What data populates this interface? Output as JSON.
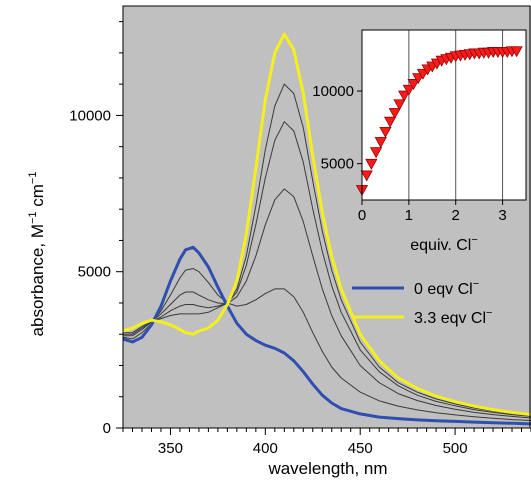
{
  "chart_data": [
    {
      "type": "line",
      "xlabel": "wavelength, nm",
      "ylabel_main": "absorbance, M",
      "ylabel_sup1": "−1",
      "ylabel_mid": " cm",
      "ylabel_sup2": "−1",
      "xlim": [
        325,
        540
      ],
      "ylim": [
        0,
        13500
      ],
      "xticks": [
        350,
        400,
        450,
        500
      ],
      "yticks": [
        0,
        5000,
        10000
      ],
      "background": "#c0c0c0",
      "grid": false,
      "legend_position": "center-right",
      "series": [
        {
          "name": "0 eqv Cl",
          "name_sup": "−",
          "color": "#2e4fb0",
          "width": 3,
          "x": [
            325,
            330,
            335,
            340,
            345,
            350,
            355,
            358,
            362,
            365,
            370,
            375,
            380,
            385,
            390,
            395,
            400,
            405,
            410,
            415,
            420,
            425,
            430,
            435,
            440,
            450,
            460,
            470,
            480,
            490,
            500,
            510,
            520,
            530,
            540
          ],
          "y": [
            2850,
            2750,
            2900,
            3300,
            3900,
            4700,
            5400,
            5700,
            5780,
            5600,
            5150,
            4500,
            3900,
            3350,
            3000,
            2800,
            2650,
            2550,
            2400,
            2150,
            1800,
            1400,
            1050,
            800,
            620,
            450,
            350,
            300,
            260,
            230,
            210,
            190,
            170,
            150,
            130
          ]
        },
        {
          "name": "",
          "color": "#3a3a3a",
          "width": 1,
          "x": [
            325,
            330,
            335,
            340,
            345,
            350,
            355,
            358,
            362,
            365,
            370,
            375,
            380,
            385,
            390,
            395,
            400,
            405,
            410,
            415,
            420,
            425,
            430,
            435,
            440,
            450,
            460,
            470,
            480,
            490,
            500,
            510,
            520,
            530,
            540
          ],
          "y": [
            2900,
            2850,
            3050,
            3350,
            3750,
            4250,
            4800,
            5050,
            5100,
            5000,
            4650,
            4250,
            4000,
            3900,
            3950,
            4100,
            4300,
            4450,
            4450,
            4200,
            3700,
            3050,
            2450,
            1950,
            1600,
            1150,
            870,
            700,
            580,
            490,
            420,
            360,
            310,
            270,
            240
          ]
        },
        {
          "name": "",
          "color": "#3a3a3a",
          "width": 1,
          "x": [
            325,
            330,
            335,
            340,
            345,
            350,
            355,
            358,
            362,
            365,
            370,
            375,
            380,
            385,
            390,
            395,
            400,
            405,
            410,
            415,
            420,
            425,
            430,
            435,
            440,
            450,
            460,
            470,
            480,
            490,
            500,
            510,
            520,
            530,
            540
          ],
          "y": [
            2950,
            2950,
            3150,
            3400,
            3650,
            3950,
            4250,
            4350,
            4350,
            4250,
            4100,
            4000,
            3980,
            4200,
            4700,
            5500,
            6500,
            7300,
            7650,
            7400,
            6600,
            5500,
            4450,
            3600,
            2950,
            2000,
            1450,
            1100,
            880,
            720,
            600,
            500,
            430,
            370,
            320
          ]
        },
        {
          "name": "",
          "color": "#3a3a3a",
          "width": 1,
          "x": [
            325,
            330,
            335,
            340,
            345,
            350,
            355,
            358,
            362,
            365,
            370,
            375,
            380,
            385,
            390,
            395,
            400,
            405,
            410,
            415,
            420,
            425,
            430,
            435,
            440,
            450,
            460,
            470,
            480,
            490,
            500,
            510,
            520,
            530,
            540
          ],
          "y": [
            3000,
            3000,
            3200,
            3400,
            3550,
            3750,
            3900,
            3950,
            3950,
            3900,
            3850,
            3900,
            4000,
            4350,
            5200,
            6500,
            8000,
            9200,
            9800,
            9500,
            8500,
            7000,
            5650,
            4550,
            3700,
            2500,
            1800,
            1350,
            1050,
            850,
            710,
            590,
            500,
            430,
            370
          ]
        },
        {
          "name": "",
          "color": "#3a3a3a",
          "width": 1,
          "x": [
            325,
            330,
            335,
            340,
            345,
            350,
            355,
            358,
            362,
            365,
            370,
            375,
            380,
            385,
            390,
            395,
            400,
            405,
            410,
            415,
            420,
            425,
            430,
            435,
            440,
            450,
            460,
            470,
            480,
            490,
            500,
            510,
            520,
            530,
            540
          ],
          "y": [
            3050,
            3050,
            3250,
            3400,
            3500,
            3600,
            3650,
            3650,
            3650,
            3650,
            3700,
            3850,
            4000,
            4450,
            5500,
            7100,
            8900,
            10300,
            11000,
            10700,
            9600,
            7900,
            6300,
            5050,
            4100,
            2750,
            1950,
            1450,
            1150,
            930,
            770,
            640,
            540,
            460,
            400
          ]
        },
        {
          "name": "3.3 eqv Cl",
          "name_sup": "−",
          "color": "#f5ef1c",
          "width": 3,
          "x": [
            325,
            330,
            335,
            340,
            345,
            350,
            355,
            358,
            362,
            365,
            370,
            375,
            380,
            385,
            390,
            395,
            400,
            405,
            410,
            415,
            420,
            425,
            430,
            435,
            440,
            450,
            460,
            470,
            480,
            490,
            500,
            510,
            520,
            530,
            540
          ],
          "y": [
            3100,
            3200,
            3350,
            3450,
            3400,
            3300,
            3150,
            3050,
            3000,
            3100,
            3200,
            3450,
            3950,
            4700,
            6200,
            8300,
            10500,
            12000,
            12600,
            12100,
            10700,
            8700,
            6900,
            5500,
            4450,
            3000,
            2150,
            1600,
            1270,
            1020,
            840,
            700,
            590,
            500,
            430
          ]
        }
      ]
    },
    {
      "type": "scatter",
      "xlabel": "equiv. Cl",
      "xlabel_sup": "−",
      "xlim": [
        0,
        3.5
      ],
      "ylim": [
        2500,
        14200
      ],
      "xticks": [
        0,
        1,
        2,
        3
      ],
      "yticks": [
        5000,
        10000
      ],
      "background": "#ffffff",
      "grid": true,
      "marker": "triangle-down",
      "marker_color": "#ff1a1a",
      "x": [
        0,
        0.1,
        0.2,
        0.3,
        0.4,
        0.5,
        0.6,
        0.7,
        0.8,
        0.9,
        1.0,
        1.1,
        1.2,
        1.3,
        1.4,
        1.5,
        1.6,
        1.7,
        1.8,
        1.9,
        2.0,
        2.1,
        2.2,
        2.3,
        2.4,
        2.5,
        2.6,
        2.7,
        2.8,
        2.9,
        3.0,
        3.1,
        3.2,
        3.3
      ],
      "y": [
        3200,
        4200,
        5000,
        5800,
        6500,
        7200,
        7900,
        8500,
        9100,
        9700,
        10100,
        10500,
        10900,
        11200,
        11500,
        11700,
        11900,
        12100,
        12200,
        12300,
        12400,
        12450,
        12500,
        12550,
        12600,
        12600,
        12650,
        12650,
        12700,
        12700,
        12700,
        12700,
        12750,
        12750
      ]
    }
  ]
}
